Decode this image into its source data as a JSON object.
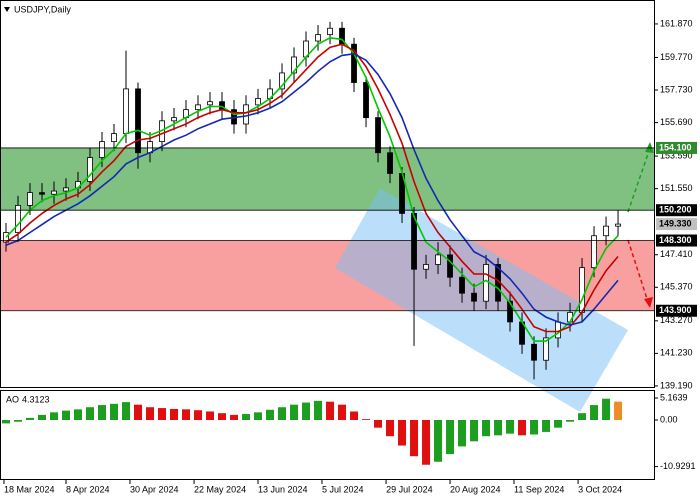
{
  "chart_data": {
    "type": "candlestick",
    "title": "USDJPY,Daily",
    "xlim": [
      -0.5,
      54.08
    ],
    "xticks": [
      {
        "value": -0.17,
        "label": "18 Mar 2024"
      },
      {
        "value": 5.0,
        "label": "8 Apr 2024"
      },
      {
        "value": 10.33,
        "label": "30 Apr 2024"
      },
      {
        "value": 15.67,
        "label": "22 May 2024"
      },
      {
        "value": 21.0,
        "label": "13 Jun 2024"
      },
      {
        "value": 26.33,
        "label": "5 Jul 2024"
      },
      {
        "value": 31.67,
        "label": "29 Jul 2024"
      },
      {
        "value": 37.0,
        "label": "20 Aug 2024"
      },
      {
        "value": 42.33,
        "label": "11 Sep 2024"
      },
      {
        "value": 47.67,
        "label": "3 Oct 2024"
      }
    ],
    "ylim": [
      139.06,
      163.37
    ],
    "yticks": [
      {
        "value": 161.87,
        "label": "161.870"
      },
      {
        "value": 159.77,
        "label": "159.770"
      },
      {
        "value": 157.73,
        "label": "157.730"
      },
      {
        "value": 155.69,
        "label": "155.690"
      },
      {
        "value": 153.59,
        "label": "153.590"
      },
      {
        "value": 151.55,
        "label": "151.550"
      },
      {
        "value": 147.41,
        "label": "147.410"
      },
      {
        "value": 145.37,
        "label": "145.370"
      },
      {
        "value": 143.27,
        "label": "143.270"
      },
      {
        "value": 141.23,
        "label": "141.230"
      },
      {
        "value": 139.19,
        "label": "139.190"
      }
    ],
    "candle_color": "#000000",
    "candles": {
      "open": [
        148.2,
        148.8,
        150.5,
        151.3,
        151.2,
        151.4,
        151.6,
        152.0,
        153.5,
        154.5,
        155.0,
        157.8,
        153.8,
        154.5,
        155.8,
        156.0,
        156.5,
        156.8,
        157.0,
        156.5,
        155.6,
        156.8,
        157.2,
        157.8,
        158.8,
        159.8,
        160.8,
        161.2,
        161.6,
        160.6,
        158.2,
        156.0,
        153.8,
        152.5,
        150.0,
        146.5,
        146.8,
        147.4,
        146.0,
        145.0,
        144.5,
        146.8,
        144.5,
        143.2,
        141.8,
        140.8,
        142.2,
        143.2,
        143.8,
        146.6,
        148.6,
        149.2
      ],
      "high": [
        149.4,
        151.1,
        151.9,
        151.9,
        152.0,
        152.2,
        152.6,
        154.1,
        155.1,
        155.6,
        160.2,
        158.2,
        155.1,
        156.4,
        156.6,
        157.1,
        157.4,
        157.6,
        157.6,
        157.1,
        157.4,
        157.8,
        158.4,
        159.4,
        160.4,
        161.4,
        161.8,
        162.0,
        162.0,
        161.0,
        158.6,
        156.4,
        154.2,
        152.9,
        150.4,
        147.4,
        148.2,
        148.0,
        146.6,
        145.6,
        147.4,
        147.2,
        145.1,
        143.8,
        142.3,
        142.8,
        143.8,
        144.4,
        147.2,
        149.2,
        149.8,
        150.2
      ],
      "low": [
        147.6,
        148.2,
        149.9,
        150.7,
        150.6,
        150.8,
        151.0,
        151.4,
        152.9,
        153.9,
        154.4,
        152.8,
        153.2,
        153.9,
        155.2,
        155.4,
        155.9,
        156.2,
        155.9,
        155.0,
        155.0,
        156.2,
        156.6,
        157.2,
        158.2,
        159.2,
        160.2,
        160.6,
        160.0,
        157.6,
        155.4,
        153.2,
        151.9,
        149.4,
        141.7,
        145.9,
        146.2,
        145.4,
        144.4,
        143.9,
        144.0,
        143.9,
        142.6,
        141.2,
        139.6,
        140.2,
        141.6,
        142.6,
        143.2,
        146.0,
        148.0,
        148.6
      ],
      "close": [
        148.8,
        150.5,
        151.3,
        151.2,
        151.4,
        151.6,
        152.0,
        153.5,
        154.5,
        155.0,
        157.8,
        153.8,
        154.5,
        155.8,
        156.0,
        156.5,
        156.8,
        157.0,
        156.5,
        155.6,
        156.8,
        157.2,
        157.8,
        158.8,
        159.8,
        160.8,
        161.2,
        161.6,
        160.6,
        158.2,
        156.0,
        153.8,
        152.5,
        150.0,
        146.5,
        146.8,
        147.4,
        146.0,
        145.0,
        144.5,
        146.8,
        144.5,
        143.2,
        141.8,
        140.8,
        142.2,
        143.2,
        143.8,
        146.6,
        148.6,
        149.2,
        149.33
      ]
    },
    "series": [
      {
        "color": "#00c800",
        "values": [
          148.5,
          149.3,
          150.2,
          150.8,
          151.1,
          151.3,
          151.6,
          152.4,
          153.3,
          154.0,
          155.0,
          155.2,
          154.9,
          155.2,
          155.6,
          156.0,
          156.4,
          156.7,
          156.7,
          156.2,
          156.3,
          156.7,
          157.2,
          158.0,
          158.9,
          159.8,
          160.6,
          161.0,
          160.9,
          160.0,
          158.5,
          156.6,
          154.8,
          152.6,
          149.8,
          148.2,
          147.6,
          147.0,
          146.2,
          145.4,
          145.8,
          145.3,
          144.4,
          143.2,
          142.0,
          142.0,
          142.5,
          143.2,
          144.6,
          146.4,
          147.8,
          148.6
        ]
      },
      {
        "color": "#c80000",
        "values": [
          148.2,
          148.7,
          149.4,
          150.0,
          150.5,
          150.9,
          151.2,
          151.8,
          152.6,
          153.3,
          154.2,
          154.6,
          154.7,
          155.0,
          155.3,
          155.6,
          156.0,
          156.3,
          156.5,
          156.3,
          156.3,
          156.5,
          156.9,
          157.4,
          158.2,
          159.0,
          159.8,
          160.4,
          160.6,
          160.2,
          159.2,
          157.8,
          156.2,
          154.4,
          152.0,
          150.0,
          148.8,
          147.9,
          147.0,
          146.2,
          146.2,
          145.8,
          145.0,
          144.0,
          142.9,
          142.6,
          142.6,
          142.9,
          143.8,
          145.2,
          146.4,
          147.3
        ]
      },
      {
        "color": "#1428b4",
        "values": [
          148.0,
          148.3,
          148.8,
          149.3,
          149.8,
          150.2,
          150.6,
          151.1,
          151.7,
          152.3,
          153.1,
          153.5,
          153.8,
          154.2,
          154.6,
          154.9,
          155.3,
          155.6,
          155.9,
          156.0,
          156.1,
          156.3,
          156.6,
          157.0,
          157.6,
          158.2,
          158.9,
          159.5,
          159.9,
          160.0,
          159.6,
          158.7,
          157.5,
          156.0,
          154.0,
          152.2,
          150.8,
          149.6,
          148.6,
          147.6,
          147.2,
          146.6,
          145.9,
          145.0,
          144.0,
          143.5,
          143.2,
          143.0,
          143.2,
          144.0,
          144.9,
          145.8
        ]
      }
    ],
    "zones": [
      {
        "low": 150.2,
        "high": 154.1,
        "color": "#80c080"
      },
      {
        "low": 143.9,
        "high": 148.3,
        "color": "#f8a0a0"
      }
    ],
    "levels": [
      {
        "value": 154.1,
        "label": "154.100",
        "color": "#2e8b2e",
        "line": true
      },
      {
        "value": 150.2,
        "label": "150.200",
        "color": "#000000",
        "line": true
      },
      {
        "value": 149.33,
        "label": "149.330",
        "color": "#c0c0c0",
        "line": false
      },
      {
        "value": 148.3,
        "label": "148.300",
        "color": "#000000",
        "line": true
      },
      {
        "value": 143.9,
        "label": "143.900",
        "color": "#000000",
        "line": true
      }
    ],
    "indicator": {
      "name": "AO",
      "ylim": [
        -14.08,
        7.04
      ],
      "yticks": [
        {
          "value": 5.1639,
          "label": "5.1639"
        },
        {
          "value": 0,
          "label": "0.00"
        },
        {
          "value": -10.9291,
          "label": "-10.9291"
        }
      ],
      "up_color": "#1e9e1e",
      "down_color": "#e01010",
      "last_color": "#f08c28",
      "values": [
        -0.8,
        -0.4,
        0.5,
        1.2,
        1.8,
        2.2,
        2.5,
        3.0,
        3.5,
        3.8,
        4.2,
        3.6,
        3.0,
        2.8,
        2.6,
        2.5,
        2.3,
        2.0,
        1.6,
        1.2,
        1.4,
        1.8,
        2.4,
        3.0,
        3.6,
        4.1,
        4.5,
        4.3,
        3.6,
        2.0,
        0.2,
        -1.8,
        -3.8,
        -6.0,
        -8.5,
        -10.5,
        -9.8,
        -8.0,
        -6.2,
        -5.0,
        -3.8,
        -3.6,
        -3.2,
        -3.6,
        -3.4,
        -2.8,
        -1.8,
        -0.4,
        1.6,
        3.5,
        5.0,
        4.3123
      ]
    }
  }
}
